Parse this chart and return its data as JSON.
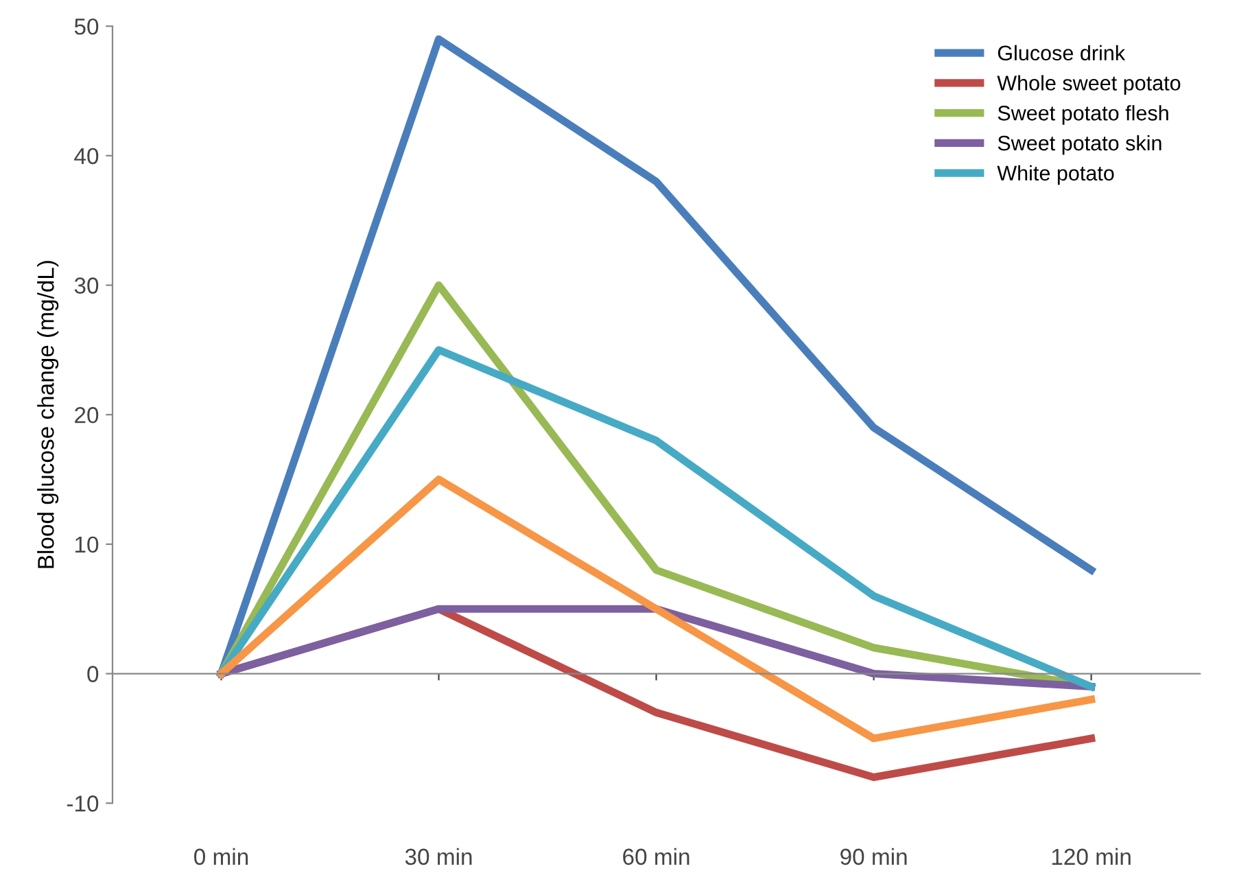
{
  "chart_data": {
    "type": "line",
    "ylabel": "Blood glucose change (mg/dL)",
    "categories": [
      "0 min",
      "30 min",
      "60 min",
      "90 min",
      "120 min"
    ],
    "series": [
      {
        "name": "Glucose drink",
        "color": "#4a7ebb",
        "values": [
          0,
          49,
          38,
          19,
          8
        ]
      },
      {
        "name": "Whole sweet potato",
        "color": "#be4b48",
        "values": [
          0,
          5,
          -3,
          -8,
          -5
        ]
      },
      {
        "name": "Sweet potato flesh",
        "color": "#98b954",
        "values": [
          0,
          30,
          8,
          2,
          -1
        ]
      },
      {
        "name": "Sweet potato skin",
        "color": "#7d60a0",
        "values": [
          0,
          5,
          5,
          0,
          -1
        ]
      },
      {
        "name": "White potato",
        "color": "#46aac5",
        "values": [
          0,
          25,
          18,
          6,
          -1
        ]
      },
      {
        "color": "#f79646",
        "values": [
          0,
          15,
          5,
          -5,
          -2
        ]
      }
    ],
    "ylim": [
      -10,
      50
    ],
    "yticks": [
      -10,
      0,
      10,
      20,
      30,
      40,
      50
    ],
    "legend": "top right",
    "marker": "none",
    "line_style": "solid"
  }
}
